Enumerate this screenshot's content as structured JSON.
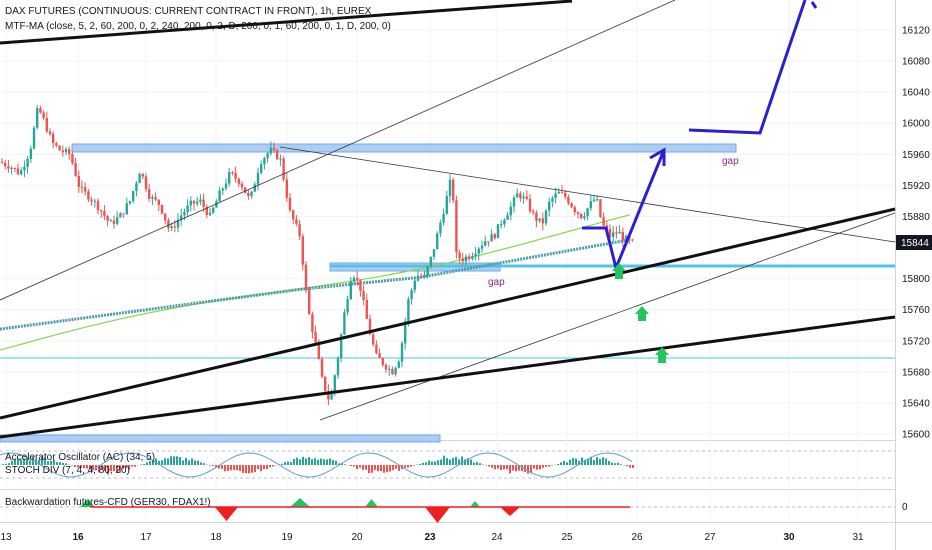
{
  "header": {
    "title": "DAX FUTURES (CONTINUOUS: CURRENT CONTRACT IN FRONT), 1h, EUREX",
    "indicator": "MTF-MA (close, 5, 2, 60, 200, 0, 2, 240, 200, 0, 2, D, 200, 0, 1, 60, 200, 0, 1, D, 200, 0)"
  },
  "panes": {
    "oscillator_label": "Accelerator Oscillator (AC) (34, 5)",
    "stoch_label": "STOCH DIV (7, 4, 4, 80, 20)",
    "backwardation_label": "Backwardation futures-CFD (GER30, FDAX1!)",
    "backwardation_zero": "0"
  },
  "colors": {
    "zone": "#9fc5f8",
    "zone_border": "#5b9bd5",
    "support": "#4fc3e8",
    "trendline": "#111111",
    "projection": "#2a1fd1",
    "arrow": "#22c55e",
    "ma_green": "#8bd44a",
    "ma_teal": "#4a9eaa",
    "price_tag": "#131722",
    "gap_text": "#8b2a8b"
  },
  "annotations": {
    "gap_upper": "gap",
    "gap_lower": "gap"
  },
  "chart_data": {
    "type": "candlestick",
    "title": "DAX FUTURES (CONTINUOUS: CURRENT CONTRACT IN FRONT), 1h, EUREX",
    "y_ticks": [
      16120,
      16080,
      16040,
      16000,
      15960,
      15920,
      15880,
      15800,
      15760,
      15720,
      15680,
      15640,
      15600
    ],
    "last_price": "15844",
    "x_ticks": [
      {
        "label": "13",
        "bold": false
      },
      {
        "label": "16",
        "bold": true
      },
      {
        "label": "17",
        "bold": false
      },
      {
        "label": "18",
        "bold": false
      },
      {
        "label": "19",
        "bold": false
      },
      {
        "label": "20",
        "bold": false
      },
      {
        "label": "23",
        "bold": true
      },
      {
        "label": "24",
        "bold": false
      },
      {
        "label": "25",
        "bold": false
      },
      {
        "label": "26",
        "bold": false
      },
      {
        "label": "27",
        "bold": false
      },
      {
        "label": "30",
        "bold": true
      },
      {
        "label": "31",
        "bold": false
      }
    ],
    "ylim": [
      15590,
      16150
    ],
    "grid": true
  }
}
